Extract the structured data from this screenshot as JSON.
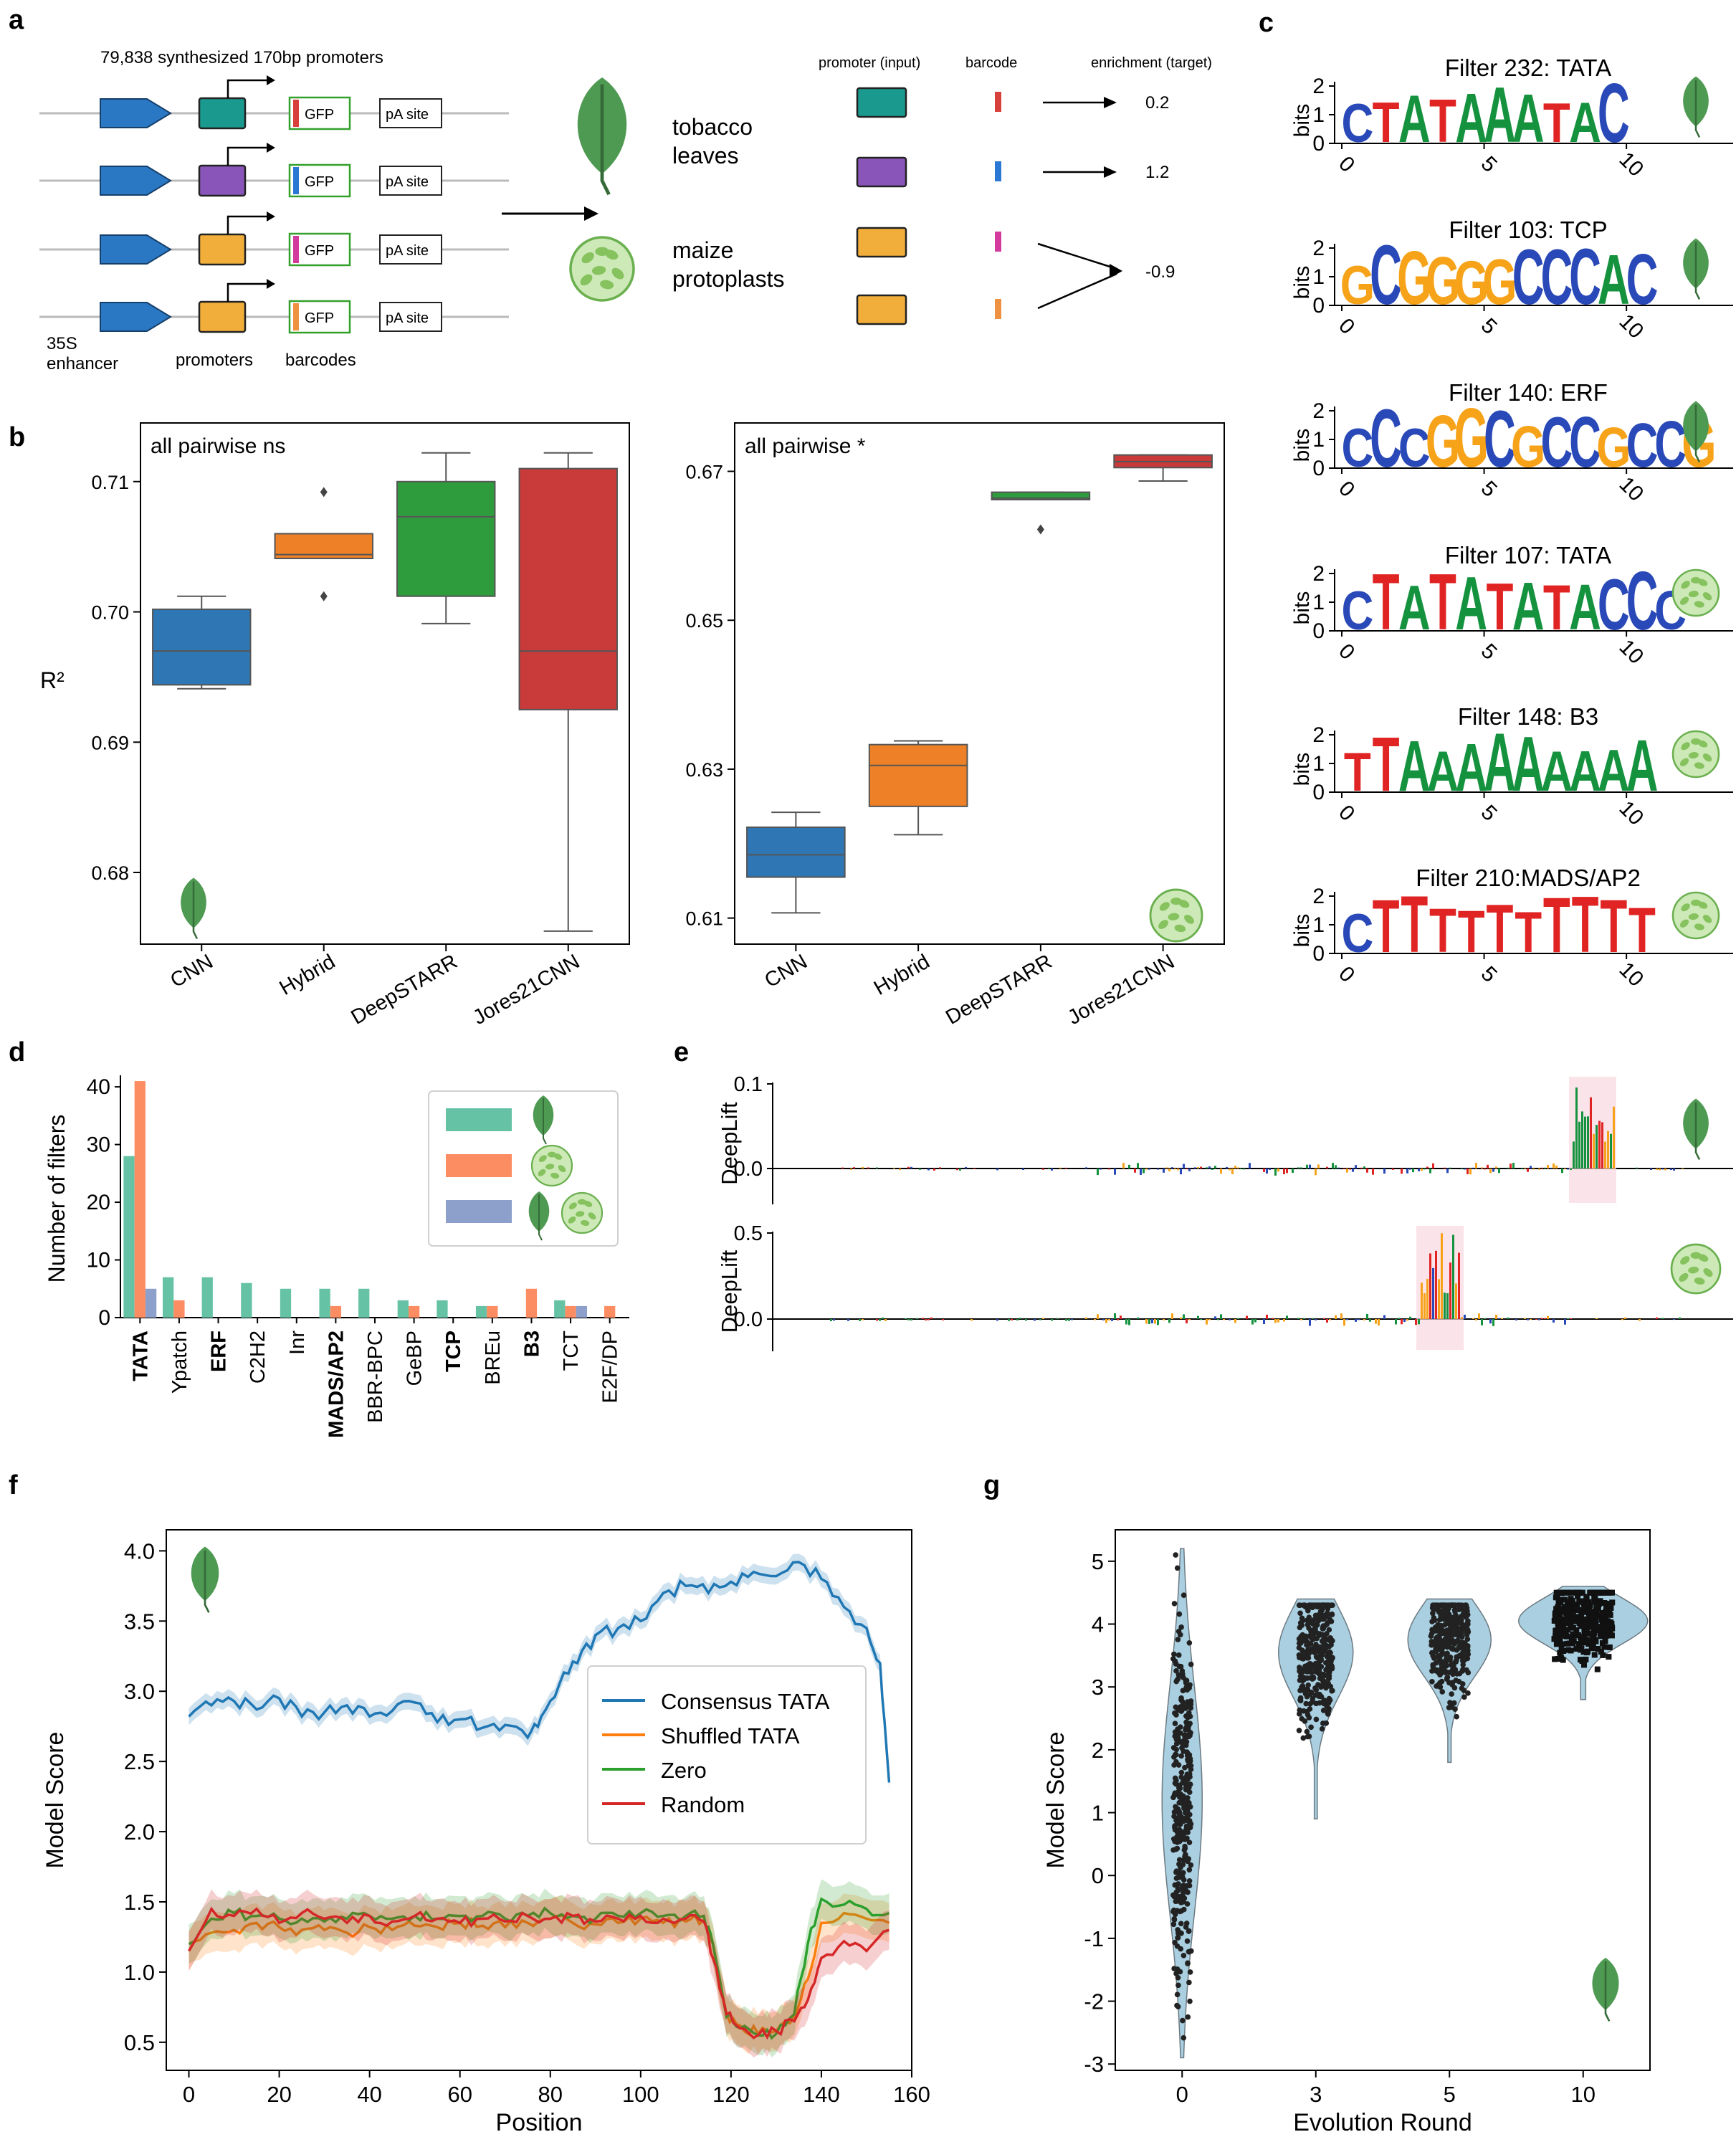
{
  "panels": {
    "a": {
      "letter": "a",
      "header": "79,838 synthesized 170bp promoters",
      "labels": {
        "enhancer": "35S\nenhancer",
        "promoters": "promoters",
        "barcodes": "barcodes",
        "gfp": "GFP",
        "pa": "pA site",
        "tobacco": "tobacco\nleaves",
        "maize": "maize\nprotoplasts"
      },
      "table_headers": [
        "promoter (input)",
        "barcode",
        "enrichment (target)"
      ],
      "enrichment": [
        "0.2",
        "1.2",
        "-0.9"
      ],
      "colors": {
        "enhancer": "#2a78c4",
        "promoter1": "#1a9a8e",
        "promoter2": "#8a55b8",
        "promoter3": "#f2ae3a",
        "barcode1": "#d8403c",
        "barcode2": "#2a78d4",
        "barcode3": "#d23a9e",
        "barcode4": "#ee9140",
        "gfp_border": "#33a02c"
      }
    },
    "b": {
      "letter": "b",
      "ylabel": "R²",
      "categories": [
        "CNN",
        "Hybrid",
        "DeepSTARR",
        "Jores21CNN"
      ],
      "colors": [
        "#2f77b4",
        "#ee8127",
        "#2e9c3c",
        "#c93a3a"
      ],
      "left": {
        "annotation": "all pairwise ns",
        "ylim": [
          0.6745,
          0.7145
        ],
        "yticks": [
          0.68,
          0.69,
          0.7,
          0.71
        ],
        "boxes": [
          {
            "min": 0.6941,
            "q1": 0.6944,
            "med": 0.697,
            "q3": 0.7002,
            "max": 0.7012,
            "outliers": []
          },
          {
            "min": 0.7041,
            "q1": 0.7041,
            "med": 0.7044,
            "q3": 0.706,
            "max": 0.706,
            "outliers": [
              0.7092,
              0.7012
            ]
          },
          {
            "min": 0.6991,
            "q1": 0.7012,
            "med": 0.7073,
            "q3": 0.71,
            "max": 0.7122,
            "outliers": []
          },
          {
            "min": 0.6755,
            "q1": 0.6925,
            "med": 0.697,
            "q3": 0.711,
            "max": 0.7122,
            "outliers": []
          }
        ]
      },
      "right": {
        "annotation": "all pairwise *",
        "ylim": [
          0.6065,
          0.6765
        ],
        "yticks": [
          0.61,
          0.63,
          0.65,
          0.67
        ],
        "boxes": [
          {
            "min": 0.6107,
            "q1": 0.6155,
            "med": 0.6185,
            "q3": 0.6222,
            "max": 0.6242,
            "outliers": []
          },
          {
            "min": 0.6212,
            "q1": 0.625,
            "med": 0.6305,
            "q3": 0.6333,
            "max": 0.6338,
            "outliers": []
          },
          {
            "min": 0.6662,
            "q1": 0.6662,
            "med": 0.6664,
            "q3": 0.6672,
            "max": 0.6672,
            "outliers": [
              0.6622
            ]
          },
          {
            "min": 0.6687,
            "q1": 0.6705,
            "med": 0.6713,
            "q3": 0.6722,
            "max": 0.6722,
            "outliers": []
          }
        ]
      }
    },
    "c": {
      "letter": "c",
      "ylabel": "bits",
      "yticks": [
        "0",
        "1",
        "2"
      ],
      "xticks": [
        "0",
        "5",
        "10"
      ],
      "filters": [
        {
          "title": "Filter 232: TATA",
          "icon": "leaf",
          "letters": "CTATAAATAC"
        },
        {
          "title": "Filter 103: TCP",
          "icon": "protoplast-leaf",
          "letters": "GCGGGGCCCAC"
        },
        {
          "title": "Filter 140: ERF",
          "icon": "leaf",
          "letters": "CCCGGCGCCGCCG"
        },
        {
          "title": "Filter 107: TATA",
          "icon": "protoplast",
          "letters": "CTATATATACCC"
        },
        {
          "title": "Filter 148: B3",
          "icon": "protoplast",
          "letters": "TTAAAAAAAAA"
        },
        {
          "title": "Filter 210:MADS/AP2",
          "icon": "protoplast",
          "letters": "CTTTTTTTTTT"
        }
      ]
    },
    "d": {
      "letter": "d",
      "ylabel": "Number of filters",
      "ylim": [
        0,
        42
      ],
      "yticks": [
        0,
        10,
        20,
        30,
        40
      ],
      "categories": [
        "TATA",
        "Ypatch",
        "ERF",
        "C2H2",
        "Inr",
        "MADS/AP2",
        "BBR-BPC",
        "GeBP",
        "TCP",
        "BREu",
        "B3",
        "TCT",
        "E2F/DP"
      ],
      "bold": [
        "TATA",
        "ERF",
        "MADS/AP2",
        "TCP",
        "B3"
      ],
      "series": [
        {
          "color": "#66c2a5",
          "values": [
            28,
            7,
            7,
            6,
            5,
            5,
            5,
            3,
            3,
            2,
            0,
            3,
            0
          ]
        },
        {
          "color": "#fc8d62",
          "values": [
            41,
            3,
            0,
            0,
            0,
            2,
            0,
            2,
            0,
            2,
            5,
            2,
            2
          ]
        },
        {
          "color": "#8da0cb",
          "values": [
            5,
            0,
            0,
            0,
            0,
            0,
            0,
            0,
            0,
            0,
            0,
            2,
            0
          ]
        }
      ]
    },
    "e": {
      "letter": "e",
      "ylabel": "DeepLift",
      "top": {
        "yticks": [
          "0.0",
          "0.1"
        ]
      },
      "bottom": {
        "yticks": [
          "0.0",
          "0.5"
        ]
      }
    },
    "f": {
      "letter": "f",
      "chart_data": {
        "type": "line",
        "xlabel": "Position",
        "ylabel": "Model Score",
        "xlim": [
          -5,
          160
        ],
        "ylim": [
          0.3,
          4.15
        ],
        "xticks": [
          0,
          20,
          40,
          60,
          80,
          100,
          120,
          140,
          160
        ],
        "yticks": [
          0.5,
          1.0,
          1.5,
          2.0,
          2.5,
          3.0,
          3.5,
          4.0
        ],
        "legend_position": "center-right",
        "series": [
          {
            "name": "Consensus TATA",
            "color": "#1f77b4",
            "x": [
              0,
              5,
              10,
              15,
              20,
              25,
              30,
              35,
              40,
              45,
              50,
              55,
              60,
              65,
              70,
              75,
              78,
              82,
              86,
              90,
              95,
              100,
              105,
              110,
              115,
              120,
              125,
              130,
              135,
              140,
              145,
              150,
              153,
              155
            ],
            "y": [
              2.82,
              2.9,
              2.93,
              2.87,
              2.95,
              2.82,
              2.85,
              2.9,
              2.82,
              2.86,
              2.92,
              2.78,
              2.8,
              2.74,
              2.76,
              2.67,
              2.82,
              3.05,
              3.2,
              3.4,
              3.45,
              3.5,
              3.7,
              3.75,
              3.7,
              3.78,
              3.85,
              3.82,
              3.92,
              3.8,
              3.6,
              3.45,
              3.2,
              2.35
            ]
          },
          {
            "name": "Shuffled TATA",
            "color": "#ff7f0e",
            "x": [
              0,
              5,
              10,
              15,
              20,
              25,
              30,
              35,
              40,
              45,
              50,
              55,
              60,
              65,
              70,
              75,
              80,
              85,
              90,
              95,
              100,
              105,
              110,
              114,
              116,
              119,
              122,
              126,
              130,
              134,
              137,
              140,
              145,
              150,
              155
            ],
            "y": [
              1.15,
              1.28,
              1.3,
              1.35,
              1.32,
              1.3,
              1.3,
              1.28,
              1.32,
              1.3,
              1.33,
              1.32,
              1.35,
              1.33,
              1.32,
              1.35,
              1.38,
              1.35,
              1.34,
              1.35,
              1.38,
              1.35,
              1.36,
              1.37,
              1.2,
              0.7,
              0.62,
              0.56,
              0.58,
              0.68,
              0.95,
              1.35,
              1.42,
              1.38,
              1.35
            ]
          },
          {
            "name": "Zero",
            "color": "#2ca02c",
            "x": [
              0,
              5,
              10,
              15,
              20,
              25,
              30,
              35,
              40,
              45,
              50,
              55,
              60,
              65,
              70,
              75,
              80,
              85,
              90,
              95,
              100,
              105,
              110,
              114,
              116,
              119,
              122,
              126,
              130,
              134,
              137,
              140,
              145,
              150,
              155
            ],
            "y": [
              1.2,
              1.38,
              1.42,
              1.4,
              1.38,
              1.38,
              1.36,
              1.38,
              1.4,
              1.38,
              1.4,
              1.38,
              1.4,
              1.4,
              1.38,
              1.4,
              1.42,
              1.4,
              1.38,
              1.4,
              1.42,
              1.4,
              1.4,
              1.4,
              1.2,
              0.68,
              0.6,
              0.55,
              0.56,
              0.7,
              1.2,
              1.52,
              1.48,
              1.45,
              1.42
            ]
          },
          {
            "name": "Random",
            "color": "#d62728",
            "x": [
              0,
              5,
              10,
              15,
              20,
              25,
              30,
              35,
              40,
              45,
              50,
              55,
              60,
              65,
              70,
              75,
              80,
              85,
              90,
              95,
              100,
              105,
              110,
              114,
              116,
              119,
              122,
              126,
              130,
              134,
              137,
              140,
              145,
              150,
              155
            ],
            "y": [
              1.15,
              1.45,
              1.4,
              1.45,
              1.35,
              1.42,
              1.38,
              1.35,
              1.4,
              1.36,
              1.4,
              1.38,
              1.35,
              1.38,
              1.36,
              1.4,
              1.38,
              1.4,
              1.36,
              1.38,
              1.4,
              1.38,
              1.38,
              1.36,
              1.1,
              0.7,
              0.6,
              0.55,
              0.58,
              0.65,
              0.8,
              1.1,
              1.22,
              1.15,
              1.3
            ]
          }
        ]
      }
    },
    "g": {
      "letter": "g",
      "chart_data": {
        "type": "scatter",
        "xlabel": "Evolution Round",
        "ylabel": "Model Score",
        "categories": [
          "0",
          "3",
          "5",
          "10"
        ],
        "ylim": [
          -3.1,
          5.5
        ],
        "yticks": [
          -3,
          -2,
          -1,
          0,
          1,
          2,
          3,
          4,
          5
        ],
        "violin_color": "#a9cfe0",
        "groups": [
          {
            "label": "0",
            "min": -2.9,
            "max": 5.2,
            "center": 1.2,
            "spread": 1.4
          },
          {
            "label": "3",
            "min": 0.9,
            "max": 4.4,
            "center": 3.55,
            "spread": 0.55
          },
          {
            "label": "5",
            "min": 1.8,
            "max": 4.4,
            "center": 3.75,
            "spread": 0.45
          },
          {
            "label": "10",
            "min": 2.8,
            "max": 4.6,
            "center": 4.05,
            "spread": 0.28
          }
        ]
      }
    }
  }
}
